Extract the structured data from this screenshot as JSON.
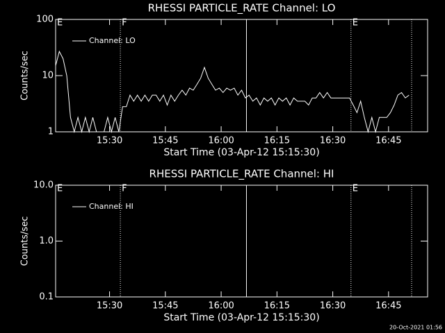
{
  "chart_data": [
    {
      "type": "line",
      "title": "RHESSI PARTICLE_RATE Channel: LO",
      "ylabel": "Counts/sec",
      "xlabel": "Start Time (03-Apr-12 15:15:30)",
      "log_y": true,
      "ylim": [
        1,
        100
      ],
      "yticks": [
        1,
        10,
        100
      ],
      "xlim": [
        0,
        100
      ],
      "xticks": [
        {
          "value": 14.5,
          "label": "15:30"
        },
        {
          "value": 29.5,
          "label": "15:45"
        },
        {
          "value": 44.5,
          "label": "16:00"
        },
        {
          "value": 59.5,
          "label": "16:15"
        },
        {
          "value": 74.5,
          "label": "16:30"
        },
        {
          "value": 89.5,
          "label": "16:45"
        }
      ],
      "legend": "upper left",
      "markers": [
        {
          "x": 0,
          "label": "E"
        },
        {
          "x": 17.4,
          "label": "F",
          "style": "dotted"
        },
        {
          "x": 51.3,
          "style": "solid"
        },
        {
          "x": 79.4,
          "label": "E",
          "style": "dotted"
        },
        {
          "x": 95.7,
          "style": "dotted"
        }
      ],
      "x": [
        0,
        1,
        2,
        3,
        4,
        5,
        6,
        7,
        8,
        9,
        10,
        11,
        12,
        13,
        14,
        15,
        16,
        17,
        18,
        19,
        20,
        21,
        22,
        23,
        24,
        25,
        26,
        27,
        28,
        29,
        30,
        31,
        32,
        33,
        34,
        35,
        36,
        37,
        38,
        39,
        40,
        41,
        42,
        43,
        44,
        45,
        46,
        47,
        48,
        49,
        50,
        51,
        52,
        53,
        54,
        55,
        56,
        57,
        58,
        59,
        60,
        61,
        62,
        63,
        64,
        65,
        66,
        67,
        68,
        69,
        70,
        71,
        72,
        73,
        74,
        75,
        76,
        77,
        78,
        79,
        80,
        81,
        82,
        83,
        84,
        85,
        86,
        87,
        88,
        89,
        90,
        91,
        92,
        93,
        94,
        95
      ],
      "series": [
        {
          "name": "Channel: LO",
          "color": "#ffffff",
          "values": [
            15,
            27,
            20,
            10,
            1.8,
            1,
            1.8,
            1,
            1.8,
            1,
            1.8,
            1,
            1,
            1,
            1.8,
            1,
            1.8,
            1,
            2.8,
            2.8,
            4.5,
            3.5,
            4.5,
            3.5,
            4.5,
            3.5,
            4.5,
            4.5,
            3.5,
            4.5,
            3,
            4.5,
            3.5,
            4.5,
            5.5,
            4.5,
            6,
            5.5,
            7,
            9,
            14,
            9,
            7,
            5.5,
            6,
            5,
            6,
            5.5,
            6,
            4.5,
            5.5,
            4,
            4.5,
            3.5,
            4,
            3,
            4,
            3.5,
            4,
            3,
            4,
            3.5,
            4,
            3,
            4,
            3.5,
            3.5,
            3.5,
            3,
            4,
            4,
            5,
            4,
            5,
            4,
            4,
            4,
            4,
            4,
            4,
            3,
            2.2,
            3.5,
            1.8,
            1,
            1.8,
            1,
            1.8,
            1.8,
            1.8,
            2.2,
            3,
            4.5,
            5,
            4,
            4.5
          ]
        }
      ]
    },
    {
      "type": "line",
      "title": "RHESSI PARTICLE_RATE Channel: HI",
      "ylabel": "Counts/sec",
      "xlabel": "Start Time (03-Apr-12 15:15:30)",
      "log_y": true,
      "ylim": [
        0.1,
        10
      ],
      "yticks": [
        0.1,
        {
          "value": 1,
          "label": "1.0"
        },
        {
          "value": 10,
          "label": "10.0"
        }
      ],
      "xlim": [
        0,
        100
      ],
      "xticks": [
        {
          "value": 14.5,
          "label": "15:30"
        },
        {
          "value": 29.5,
          "label": "15:45"
        },
        {
          "value": 44.5,
          "label": "16:00"
        },
        {
          "value": 59.5,
          "label": "16:15"
        },
        {
          "value": 74.5,
          "label": "16:30"
        },
        {
          "value": 89.5,
          "label": "16:45"
        }
      ],
      "legend": "upper left",
      "markers": [
        {
          "x": 0,
          "label": "E"
        },
        {
          "x": 17.4,
          "label": "F",
          "style": "dotted"
        },
        {
          "x": 51.3,
          "style": "solid"
        },
        {
          "x": 79.4,
          "label": "E",
          "style": "dotted"
        },
        {
          "x": 95.7,
          "style": "dotted"
        }
      ],
      "x": [],
      "series": [
        {
          "name": "Channel: HI",
          "color": "#ffffff",
          "values": []
        }
      ]
    }
  ],
  "footer": "20-Oct-2021 01:56"
}
